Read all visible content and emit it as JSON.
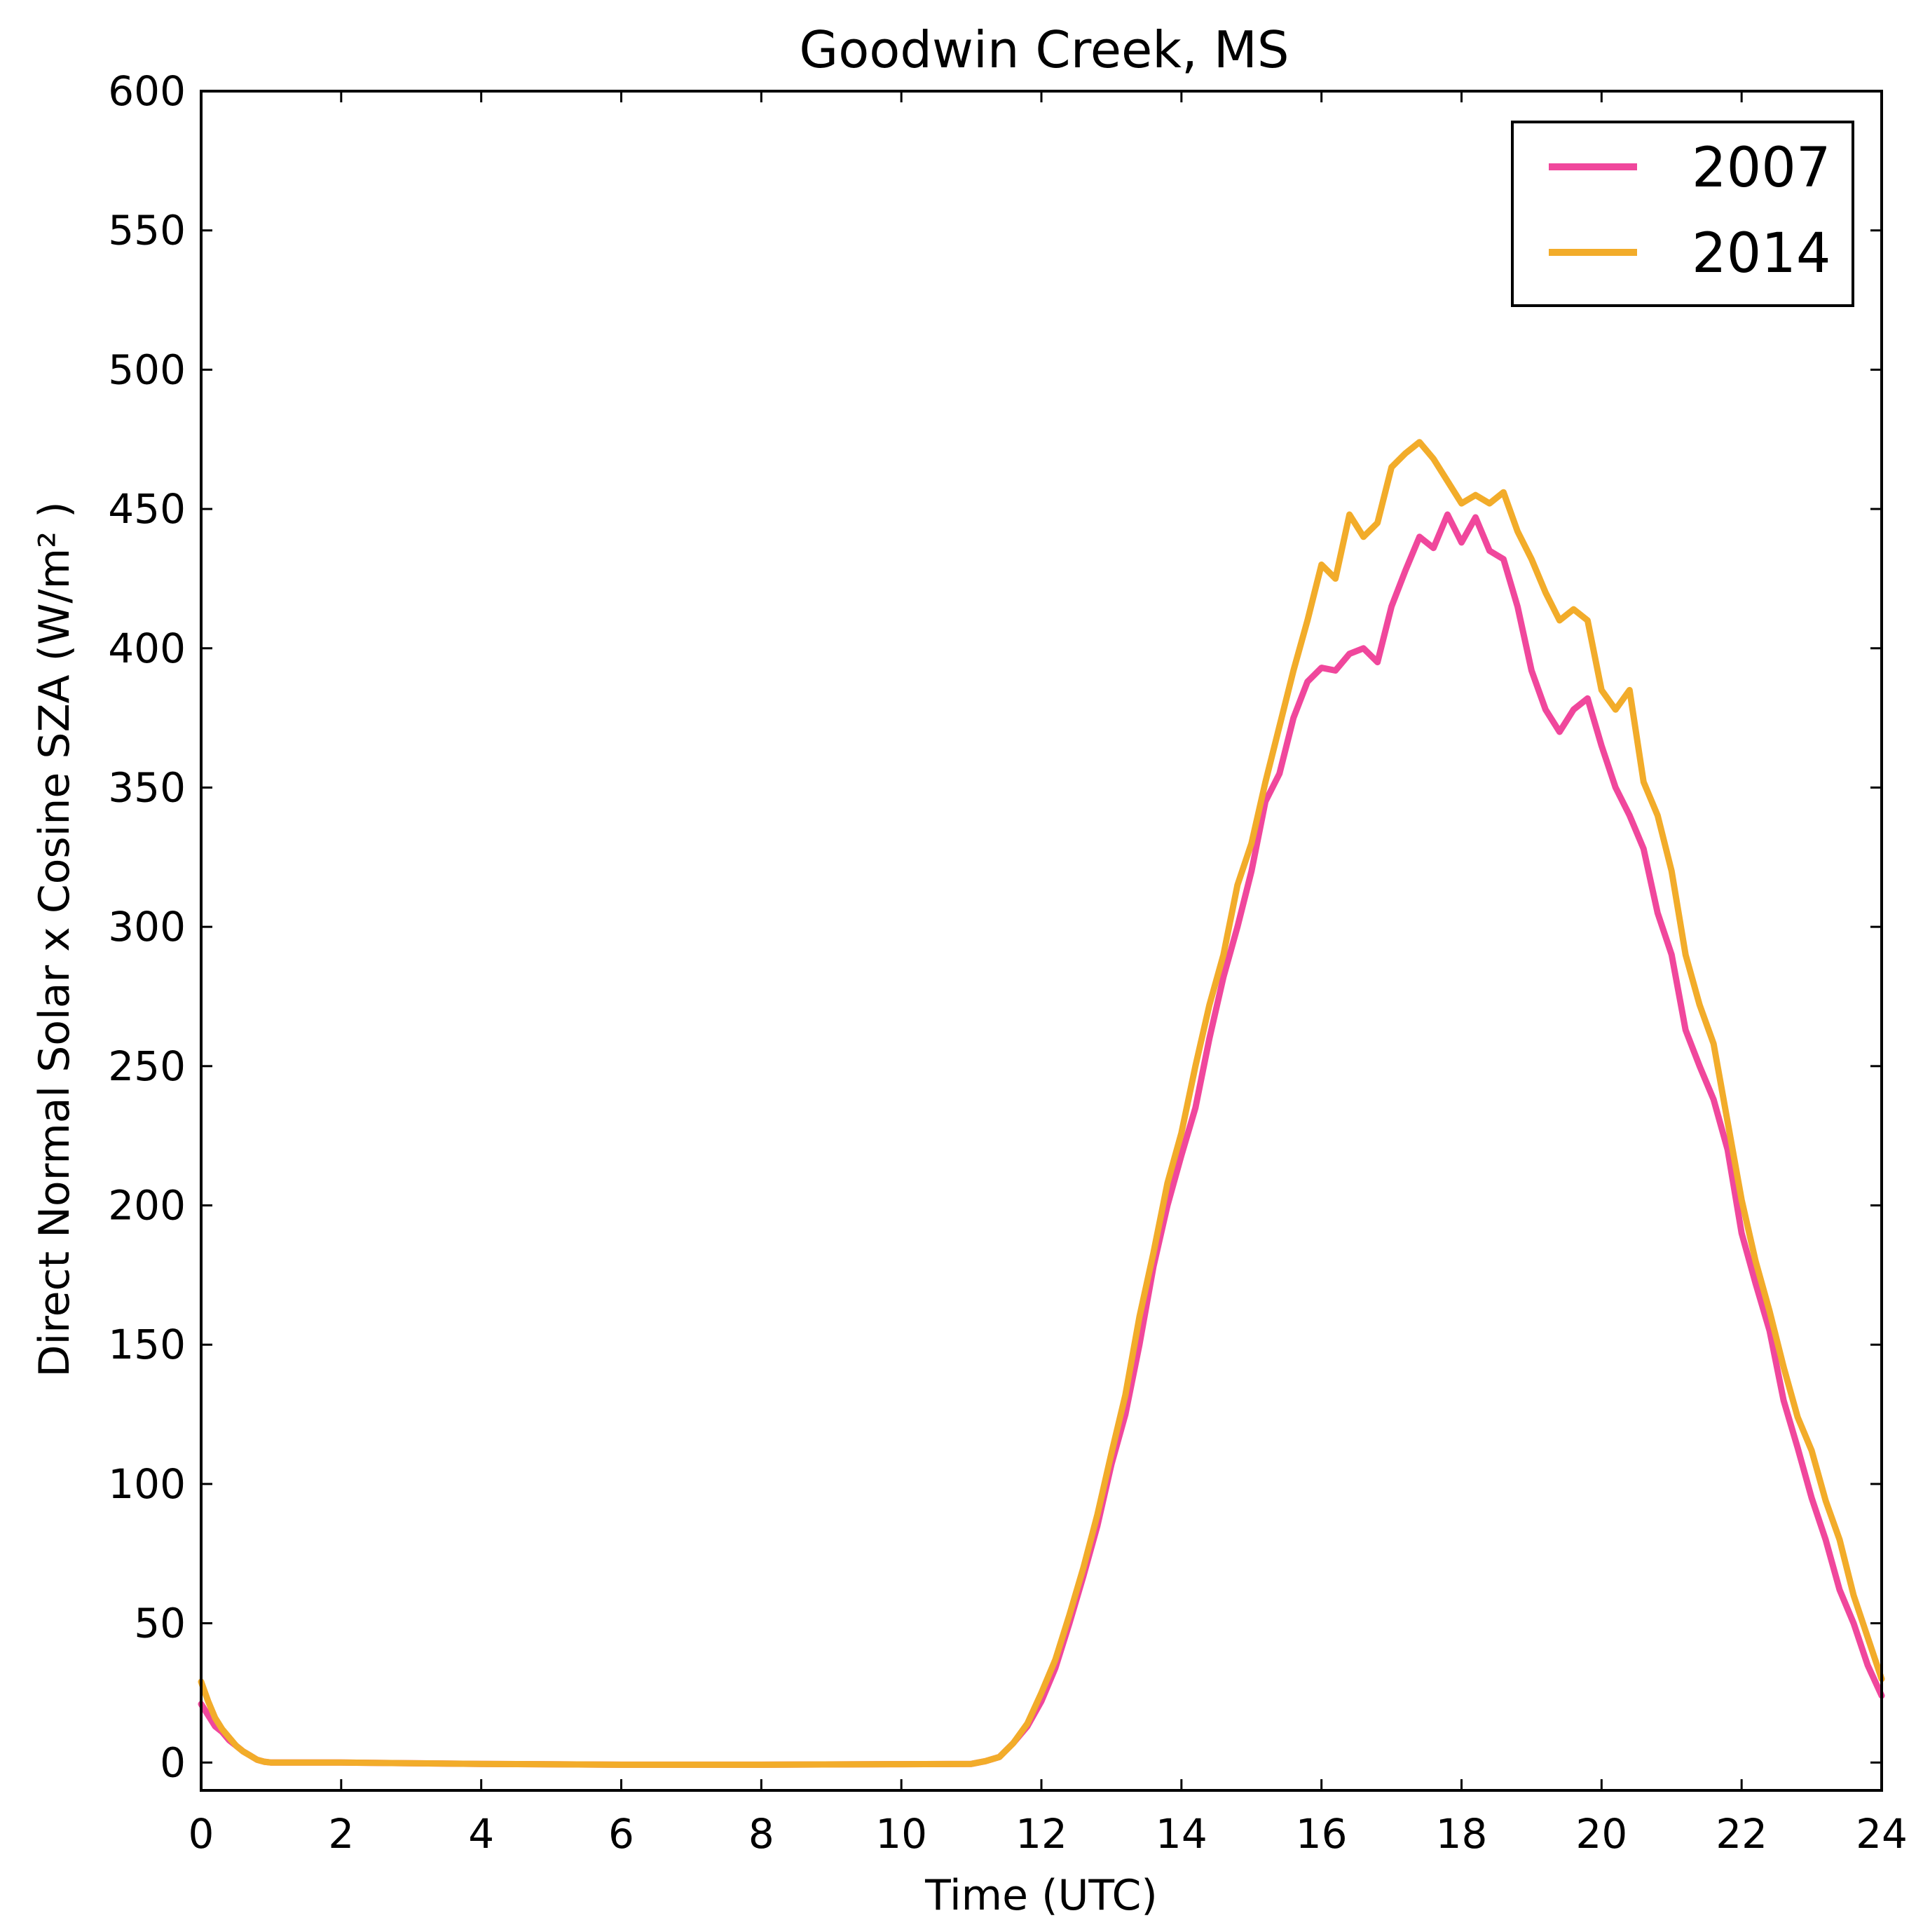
{
  "chart_data": {
    "type": "line",
    "title": "Goodwin Creek, MS",
    "xlabel": "Time (UTC)",
    "ylabel": "Direct Normal Solar x Cosine SZA (W/m² )",
    "xlim": [
      0,
      24
    ],
    "ylim": [
      -10,
      600
    ],
    "x_ticks": [
      0,
      2,
      4,
      6,
      8,
      10,
      12,
      14,
      16,
      18,
      20,
      22,
      24
    ],
    "y_ticks": [
      0,
      50,
      100,
      150,
      200,
      250,
      300,
      350,
      400,
      450,
      500,
      550,
      600
    ],
    "grid": false,
    "legend_position": "top-right",
    "series": [
      {
        "name": "2007",
        "color": "#f0479c",
        "points": [
          [
            0,
            21
          ],
          [
            0.1,
            17
          ],
          [
            0.2,
            13
          ],
          [
            0.3,
            11
          ],
          [
            0.4,
            8
          ],
          [
            0.5,
            6
          ],
          [
            0.6,
            4
          ],
          [
            0.7,
            2.5
          ],
          [
            0.8,
            1
          ],
          [
            0.9,
            0.3
          ],
          [
            1,
            0
          ],
          [
            2,
            0
          ],
          [
            4,
            -0.5
          ],
          [
            6,
            -0.8
          ],
          [
            8,
            -0.8
          ],
          [
            10,
            -0.6
          ],
          [
            11,
            -0.5
          ],
          [
            11.2,
            0.5
          ],
          [
            11.4,
            2
          ],
          [
            11.6,
            7
          ],
          [
            11.8,
            13
          ],
          [
            12,
            22
          ],
          [
            12.2,
            34
          ],
          [
            12.4,
            50
          ],
          [
            12.6,
            67
          ],
          [
            12.8,
            85
          ],
          [
            13,
            107
          ],
          [
            13.2,
            125
          ],
          [
            13.4,
            150
          ],
          [
            13.6,
            178
          ],
          [
            13.8,
            200
          ],
          [
            14,
            218
          ],
          [
            14.2,
            235
          ],
          [
            14.4,
            260
          ],
          [
            14.6,
            282
          ],
          [
            14.8,
            300
          ],
          [
            15,
            320
          ],
          [
            15.2,
            345
          ],
          [
            15.4,
            355
          ],
          [
            15.6,
            375
          ],
          [
            15.8,
            388
          ],
          [
            16,
            393
          ],
          [
            16.2,
            392
          ],
          [
            16.4,
            398
          ],
          [
            16.6,
            400
          ],
          [
            16.8,
            395
          ],
          [
            17,
            415
          ],
          [
            17.2,
            428
          ],
          [
            17.4,
            440
          ],
          [
            17.6,
            436
          ],
          [
            17.8,
            448
          ],
          [
            18,
            438
          ],
          [
            18.2,
            447
          ],
          [
            18.4,
            435
          ],
          [
            18.6,
            432
          ],
          [
            18.8,
            415
          ],
          [
            19,
            392
          ],
          [
            19.2,
            378
          ],
          [
            19.4,
            370
          ],
          [
            19.6,
            378
          ],
          [
            19.8,
            382
          ],
          [
            20,
            365
          ],
          [
            20.2,
            350
          ],
          [
            20.4,
            340
          ],
          [
            20.6,
            328
          ],
          [
            20.8,
            305
          ],
          [
            21,
            290
          ],
          [
            21.2,
            263
          ],
          [
            21.4,
            250
          ],
          [
            21.6,
            238
          ],
          [
            21.8,
            220
          ],
          [
            22,
            190
          ],
          [
            22.2,
            172
          ],
          [
            22.4,
            155
          ],
          [
            22.6,
            130
          ],
          [
            22.8,
            113
          ],
          [
            23,
            95
          ],
          [
            23.2,
            80
          ],
          [
            23.4,
            62
          ],
          [
            23.6,
            50
          ],
          [
            23.8,
            35
          ],
          [
            24,
            24
          ]
        ]
      },
      {
        "name": "2014",
        "color": "#f2ac2a",
        "points": [
          [
            0,
            29
          ],
          [
            0.1,
            22
          ],
          [
            0.2,
            16
          ],
          [
            0.3,
            12
          ],
          [
            0.4,
            9
          ],
          [
            0.5,
            6
          ],
          [
            0.6,
            4
          ],
          [
            0.7,
            2.5
          ],
          [
            0.8,
            1
          ],
          [
            0.9,
            0.3
          ],
          [
            1,
            0
          ],
          [
            2,
            0
          ],
          [
            4,
            -0.5
          ],
          [
            6,
            -0.8
          ],
          [
            8,
            -0.8
          ],
          [
            10,
            -0.6
          ],
          [
            11,
            -0.5
          ],
          [
            11.2,
            0.5
          ],
          [
            11.4,
            2
          ],
          [
            11.6,
            7
          ],
          [
            11.8,
            14
          ],
          [
            12,
            25
          ],
          [
            12.2,
            37
          ],
          [
            12.4,
            53
          ],
          [
            12.6,
            70
          ],
          [
            12.8,
            89
          ],
          [
            13,
            111
          ],
          [
            13.2,
            132
          ],
          [
            13.4,
            160
          ],
          [
            13.6,
            183
          ],
          [
            13.8,
            208
          ],
          [
            14,
            226
          ],
          [
            14.2,
            250
          ],
          [
            14.4,
            272
          ],
          [
            14.6,
            290
          ],
          [
            14.8,
            315
          ],
          [
            15,
            330
          ],
          [
            15.2,
            352
          ],
          [
            15.4,
            372
          ],
          [
            15.6,
            392
          ],
          [
            15.8,
            410
          ],
          [
            16,
            430
          ],
          [
            16.2,
            425
          ],
          [
            16.4,
            448
          ],
          [
            16.6,
            440
          ],
          [
            16.8,
            445
          ],
          [
            17,
            465
          ],
          [
            17.2,
            470
          ],
          [
            17.4,
            474
          ],
          [
            17.6,
            468
          ],
          [
            17.8,
            460
          ],
          [
            18,
            452
          ],
          [
            18.2,
            455
          ],
          [
            18.4,
            452
          ],
          [
            18.6,
            456
          ],
          [
            18.8,
            442
          ],
          [
            19,
            432
          ],
          [
            19.2,
            420
          ],
          [
            19.4,
            410
          ],
          [
            19.6,
            414
          ],
          [
            19.8,
            410
          ],
          [
            20,
            385
          ],
          [
            20.2,
            378
          ],
          [
            20.4,
            385
          ],
          [
            20.6,
            352
          ],
          [
            20.8,
            340
          ],
          [
            21,
            320
          ],
          [
            21.2,
            290
          ],
          [
            21.4,
            272
          ],
          [
            21.6,
            258
          ],
          [
            21.8,
            230
          ],
          [
            22,
            202
          ],
          [
            22.2,
            180
          ],
          [
            22.4,
            162
          ],
          [
            22.6,
            142
          ],
          [
            22.8,
            124
          ],
          [
            23,
            112
          ],
          [
            23.2,
            94
          ],
          [
            23.4,
            80
          ],
          [
            23.6,
            60
          ],
          [
            23.8,
            45
          ],
          [
            24,
            30
          ]
        ]
      }
    ]
  }
}
